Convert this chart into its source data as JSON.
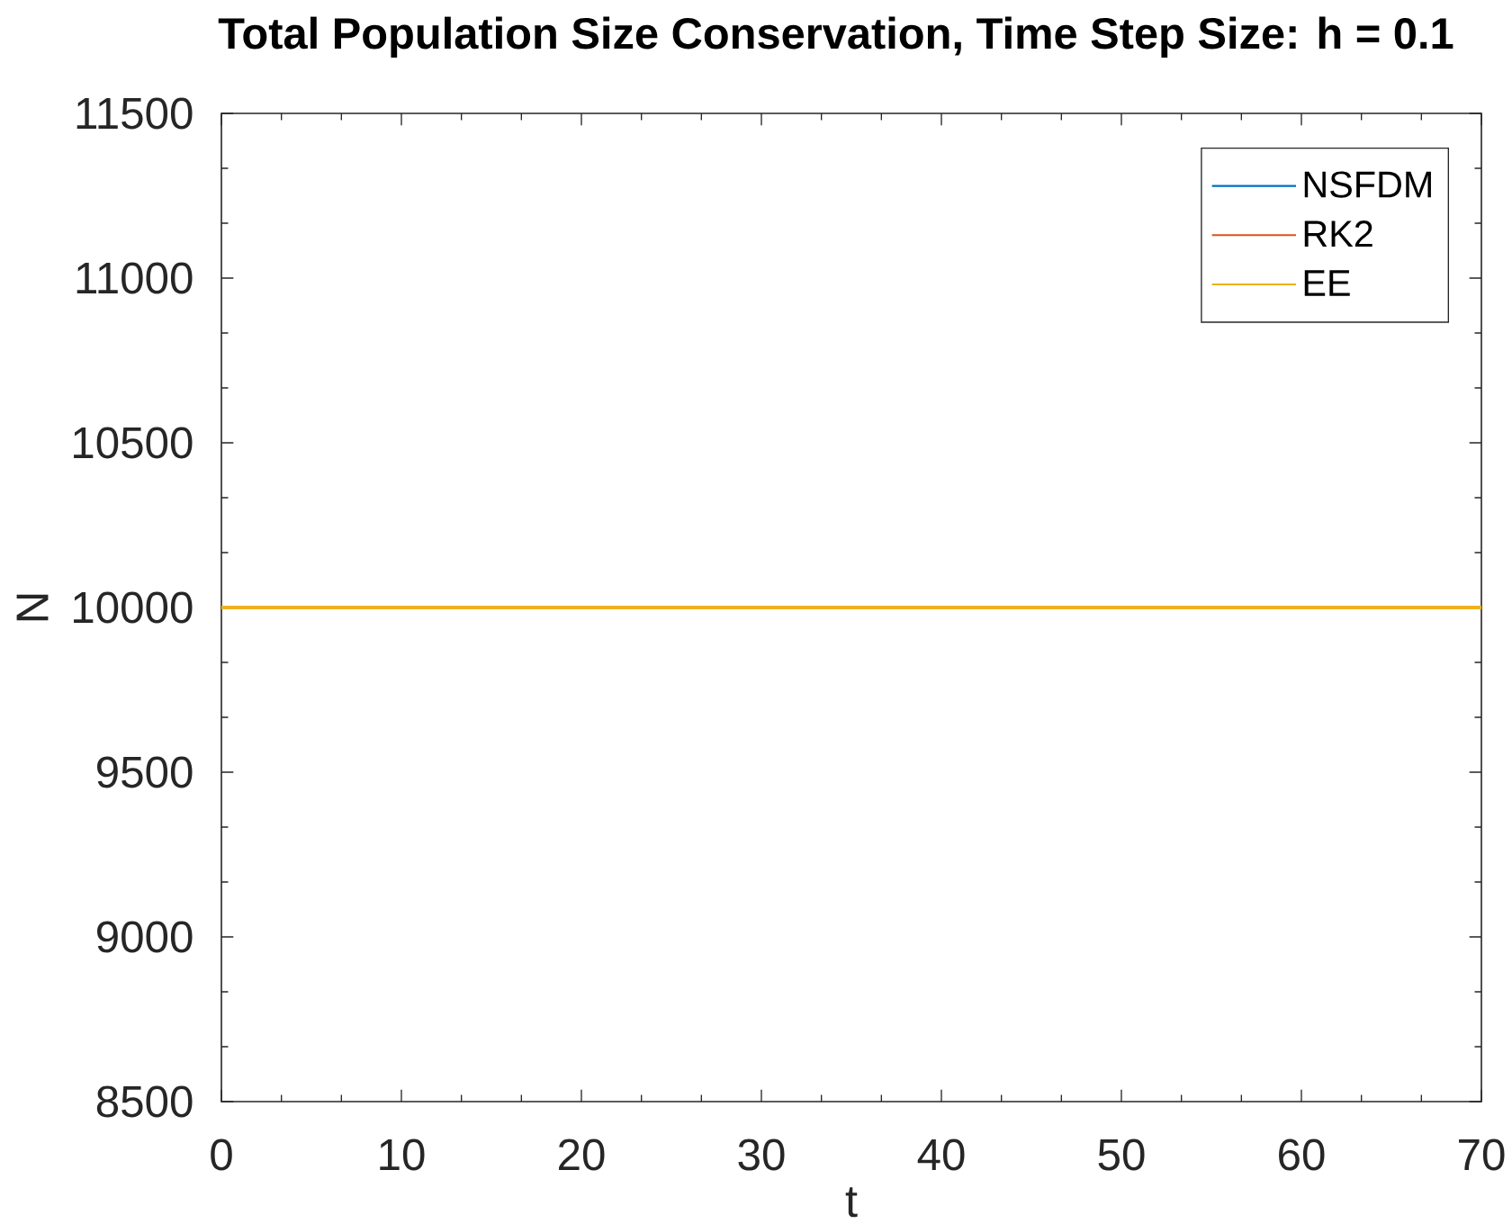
{
  "chart_data": {
    "type": "line",
    "title": "Total Population Size Conservation, Time Step Size: h = 0.1",
    "xlabel": "t",
    "ylabel": "N",
    "x": [
      0,
      70
    ],
    "series": [
      {
        "name": "NSFDM",
        "color": "#0072bd",
        "values": [
          null,
          null
        ]
      },
      {
        "name": "RK2",
        "color": "#d95319",
        "values": [
          null,
          null
        ]
      },
      {
        "name": "EE",
        "color": "#edb120",
        "values": [
          10000,
          10000
        ]
      }
    ],
    "xlim": [
      0,
      70
    ],
    "ylim": [
      8500,
      11500
    ],
    "xticks": [
      0,
      10,
      20,
      30,
      40,
      50,
      60,
      70
    ],
    "yticks": [
      8500,
      9000,
      9500,
      10000,
      10500,
      11000,
      11500
    ],
    "legend": "top right",
    "line_style": "solid"
  }
}
